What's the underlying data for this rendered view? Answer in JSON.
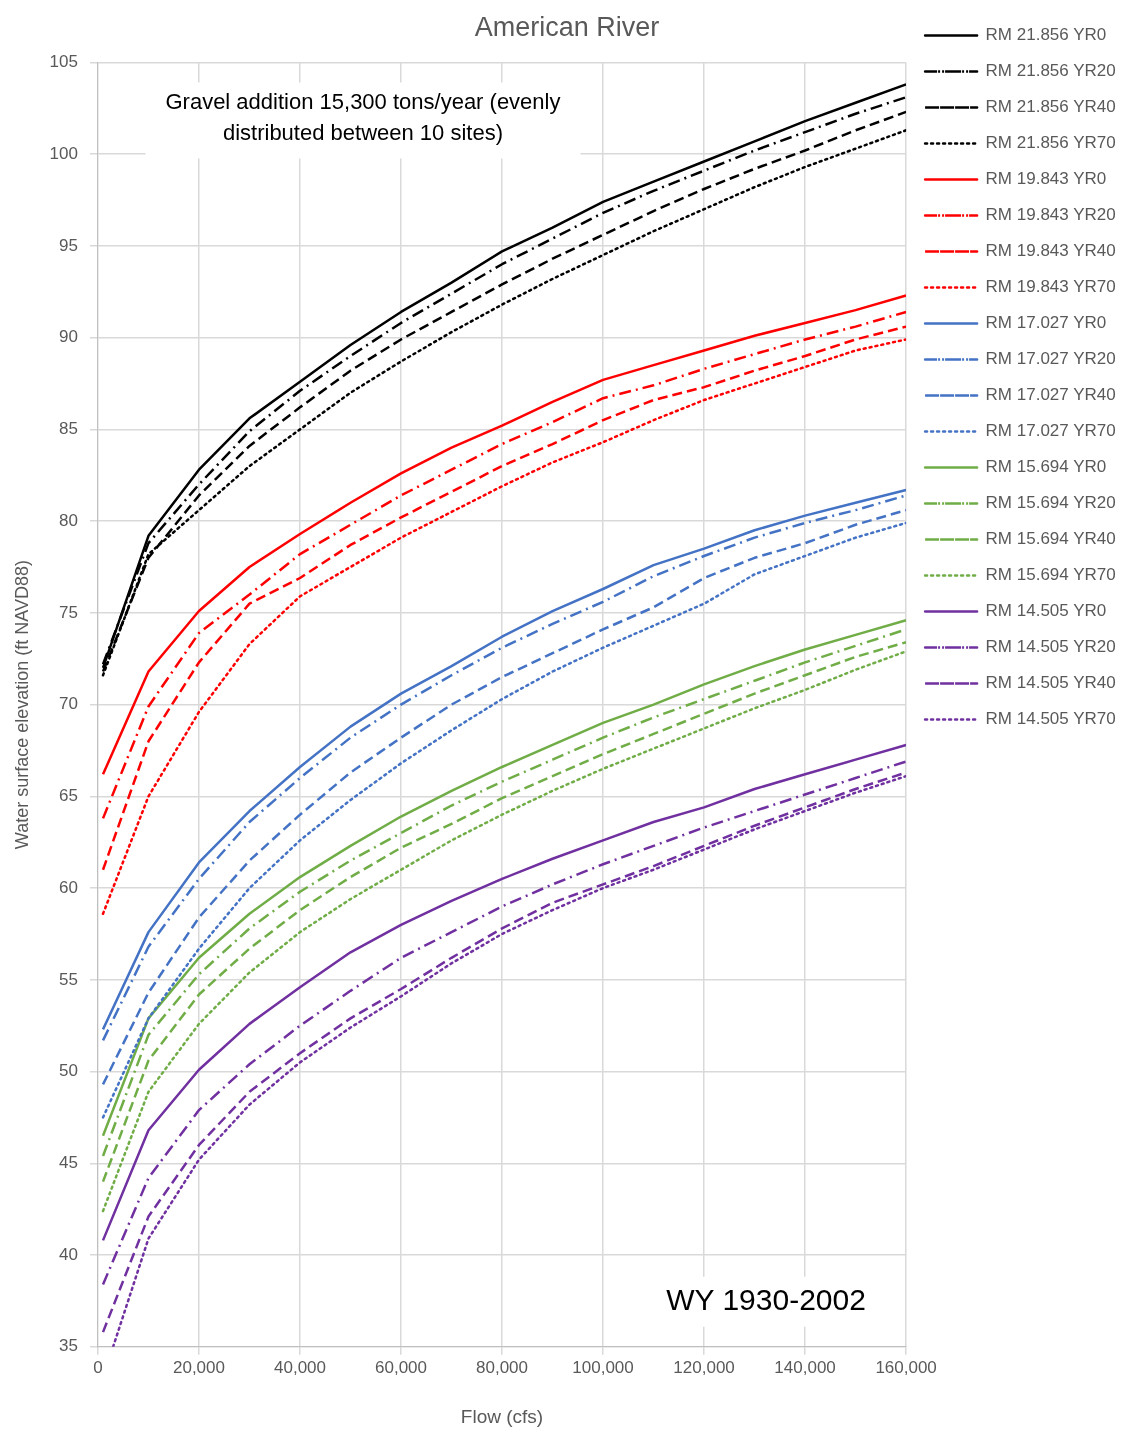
{
  "chart_data": {
    "type": "line",
    "title": "American River",
    "xlabel": "Flow (cfs)",
    "ylabel": "Water surface elevation (ft NAVD88)",
    "x": [
      1000,
      10000,
      20000,
      30000,
      40000,
      50000,
      60000,
      70000,
      80000,
      90000,
      100000,
      110000,
      120000,
      130000,
      140000,
      150000,
      160000
    ],
    "xlim": [
      0,
      160000
    ],
    "xticks": [
      0,
      {
        "value": 20000,
        "label": "20,000"
      },
      {
        "value": 40000,
        "label": "40,000"
      },
      {
        "value": 60000,
        "label": "60,000"
      },
      {
        "value": 80000,
        "label": "80,000"
      },
      {
        "value": 100000,
        "label": "100,000"
      },
      {
        "value": 120000,
        "label": "120,000"
      },
      {
        "value": 140000,
        "label": "140,000"
      },
      {
        "value": 160000,
        "label": "160,000"
      }
    ],
    "ylim": [
      35,
      105
    ],
    "yticks": [
      35,
      40,
      45,
      50,
      55,
      60,
      65,
      70,
      75,
      80,
      85,
      90,
      95,
      100,
      105
    ],
    "grid": true,
    "legend": "right",
    "marker": "none",
    "annotations": [
      "Gravel addition 15,300 tons/year (evenly distributed between 10 sites)",
      "WY 1930-2002"
    ],
    "series": [
      {
        "name": "RM 21.856 YR0",
        "color": "#000000",
        "line_style": "solid",
        "values": [
          72.0,
          79.2,
          82.8,
          85.6,
          87.6,
          89.6,
          91.4,
          93.0,
          94.7,
          96.0,
          97.4,
          98.5,
          99.6,
          100.7,
          101.8,
          102.8,
          103.8
        ]
      },
      {
        "name": "RM 21.856 YR20",
        "color": "#000000",
        "line_style": "dashdot",
        "values": [
          72.2,
          78.8,
          82.0,
          84.9,
          87.1,
          89.0,
          90.8,
          92.4,
          94.0,
          95.4,
          96.8,
          98.0,
          99.1,
          100.2,
          101.2,
          102.2,
          103.1
        ]
      },
      {
        "name": "RM 21.856 YR40",
        "color": "#000000",
        "line_style": "dashed",
        "values": [
          71.8,
          78.0,
          81.4,
          84.1,
          86.2,
          88.2,
          89.9,
          91.4,
          92.9,
          94.3,
          95.6,
          96.9,
          98.1,
          99.2,
          100.2,
          101.3,
          102.3
        ]
      },
      {
        "name": "RM 21.856 YR70",
        "color": "#000000",
        "line_style": "dotted",
        "values": [
          71.6,
          78.2,
          80.6,
          83.0,
          85.0,
          87.0,
          88.7,
          90.3,
          91.8,
          93.2,
          94.5,
          95.8,
          97.0,
          98.2,
          99.3,
          100.3,
          101.3
        ]
      },
      {
        "name": "RM 19.843 YR0",
        "color": "#ff0000",
        "line_style": "solid",
        "values": [
          66.2,
          71.8,
          75.1,
          77.5,
          79.3,
          81.0,
          82.6,
          84.0,
          85.2,
          86.5,
          87.7,
          88.5,
          89.3,
          90.1,
          90.8,
          91.5,
          92.3
        ]
      },
      {
        "name": "RM 19.843 YR20",
        "color": "#ff0000",
        "line_style": "dashdot",
        "values": [
          63.8,
          69.9,
          73.9,
          76.0,
          78.2,
          79.8,
          81.4,
          82.8,
          84.2,
          85.4,
          86.7,
          87.4,
          88.3,
          89.1,
          89.9,
          90.6,
          91.4
        ]
      },
      {
        "name": "RM 19.843 YR40",
        "color": "#ff0000",
        "line_style": "dashed",
        "values": [
          61.0,
          68.0,
          72.3,
          75.5,
          76.9,
          78.7,
          80.2,
          81.6,
          83.0,
          84.2,
          85.5,
          86.6,
          87.3,
          88.2,
          89.0,
          89.9,
          90.6
        ]
      },
      {
        "name": "RM 19.843 YR70",
        "color": "#ff0000",
        "line_style": "dotted",
        "values": [
          58.6,
          65.0,
          69.6,
          73.3,
          75.9,
          77.5,
          79.1,
          80.5,
          81.9,
          83.2,
          84.3,
          85.5,
          86.6,
          87.5,
          88.4,
          89.3,
          89.9
        ]
      },
      {
        "name": "RM 17.027 YR0",
        "color": "#4472c4",
        "line_style": "solid",
        "values": [
          52.3,
          57.6,
          61.4,
          64.2,
          66.6,
          68.8,
          70.6,
          72.1,
          73.7,
          75.1,
          76.3,
          77.6,
          78.5,
          79.5,
          80.3,
          81.0,
          81.7
        ]
      },
      {
        "name": "RM 17.027 YR20",
        "color": "#4472c4",
        "line_style": "dashdot",
        "values": [
          51.7,
          56.8,
          60.5,
          63.6,
          66.0,
          68.2,
          70.0,
          71.6,
          73.1,
          74.4,
          75.6,
          77.0,
          78.1,
          79.1,
          79.9,
          80.6,
          81.4
        ]
      },
      {
        "name": "RM 17.027 YR40",
        "color": "#4472c4",
        "line_style": "dashed",
        "values": [
          49.3,
          54.3,
          58.4,
          61.5,
          64.0,
          66.3,
          68.2,
          70.0,
          71.5,
          72.8,
          74.1,
          75.3,
          76.9,
          78.0,
          78.8,
          79.8,
          80.6
        ]
      },
      {
        "name": "RM 17.027 YR70",
        "color": "#4472c4",
        "line_style": "dotted",
        "values": [
          47.5,
          52.9,
          56.7,
          60.0,
          62.6,
          64.8,
          66.8,
          68.6,
          70.3,
          71.8,
          73.1,
          74.3,
          75.5,
          77.1,
          78.1,
          79.1,
          79.9
        ]
      },
      {
        "name": "RM 15.694 YR0",
        "color": "#70ad47",
        "line_style": "solid",
        "values": [
          46.5,
          52.9,
          56.2,
          58.6,
          60.6,
          62.3,
          63.9,
          65.3,
          66.6,
          67.8,
          69.0,
          70.0,
          71.1,
          72.1,
          73.0,
          73.8,
          74.6
        ]
      },
      {
        "name": "RM 15.694 YR20",
        "color": "#70ad47",
        "line_style": "dashdot",
        "values": [
          45.4,
          52.0,
          55.3,
          57.8,
          59.8,
          61.5,
          63.0,
          64.5,
          65.8,
          67.0,
          68.2,
          69.3,
          70.3,
          71.3,
          72.3,
          73.2,
          74.1
        ]
      },
      {
        "name": "RM 15.694 YR40",
        "color": "#70ad47",
        "line_style": "dashed",
        "values": [
          44.0,
          50.6,
          54.2,
          56.7,
          58.8,
          60.6,
          62.2,
          63.5,
          64.9,
          66.1,
          67.3,
          68.4,
          69.5,
          70.6,
          71.6,
          72.6,
          73.4
        ]
      },
      {
        "name": "RM 15.694 YR70",
        "color": "#70ad47",
        "line_style": "dotted",
        "values": [
          42.4,
          48.9,
          52.6,
          55.4,
          57.6,
          59.4,
          61.0,
          62.6,
          64.0,
          65.3,
          66.5,
          67.6,
          68.7,
          69.8,
          70.8,
          71.9,
          72.9
        ]
      },
      {
        "name": "RM 14.505 YR0",
        "color": "#7030a0",
        "line_style": "solid",
        "values": [
          40.8,
          46.8,
          50.1,
          52.6,
          54.6,
          56.5,
          58.0,
          59.3,
          60.5,
          61.6,
          62.6,
          63.6,
          64.4,
          65.4,
          66.2,
          67.0,
          67.8
        ]
      },
      {
        "name": "RM 14.505 YR20",
        "color": "#7030a0",
        "line_style": "dashdot",
        "values": [
          38.4,
          44.2,
          47.9,
          50.4,
          52.5,
          54.4,
          56.2,
          57.6,
          59.0,
          60.2,
          61.3,
          62.3,
          63.3,
          64.2,
          65.1,
          66.0,
          66.9
        ]
      },
      {
        "name": "RM 14.505 YR40",
        "color": "#7030a0",
        "line_style": "dashed",
        "values": [
          35.8,
          42.1,
          46.0,
          48.9,
          51.0,
          52.9,
          54.5,
          56.2,
          57.8,
          59.2,
          60.2,
          61.2,
          62.3,
          63.4,
          64.4,
          65.4,
          66.3
        ]
      },
      {
        "name": "RM 14.505 YR70",
        "color": "#7030a0",
        "line_style": "dotted",
        "x": [
          3000,
          10000,
          20000,
          30000,
          40000,
          50000,
          60000,
          70000,
          80000,
          90000,
          100000,
          110000,
          120000,
          130000,
          140000,
          150000,
          160000
        ],
        "values": [
          35.0,
          40.9,
          45.2,
          48.2,
          50.5,
          52.4,
          54.1,
          55.9,
          57.5,
          58.8,
          60.0,
          61.0,
          62.1,
          63.2,
          64.2,
          65.2,
          66.1
        ]
      }
    ]
  }
}
